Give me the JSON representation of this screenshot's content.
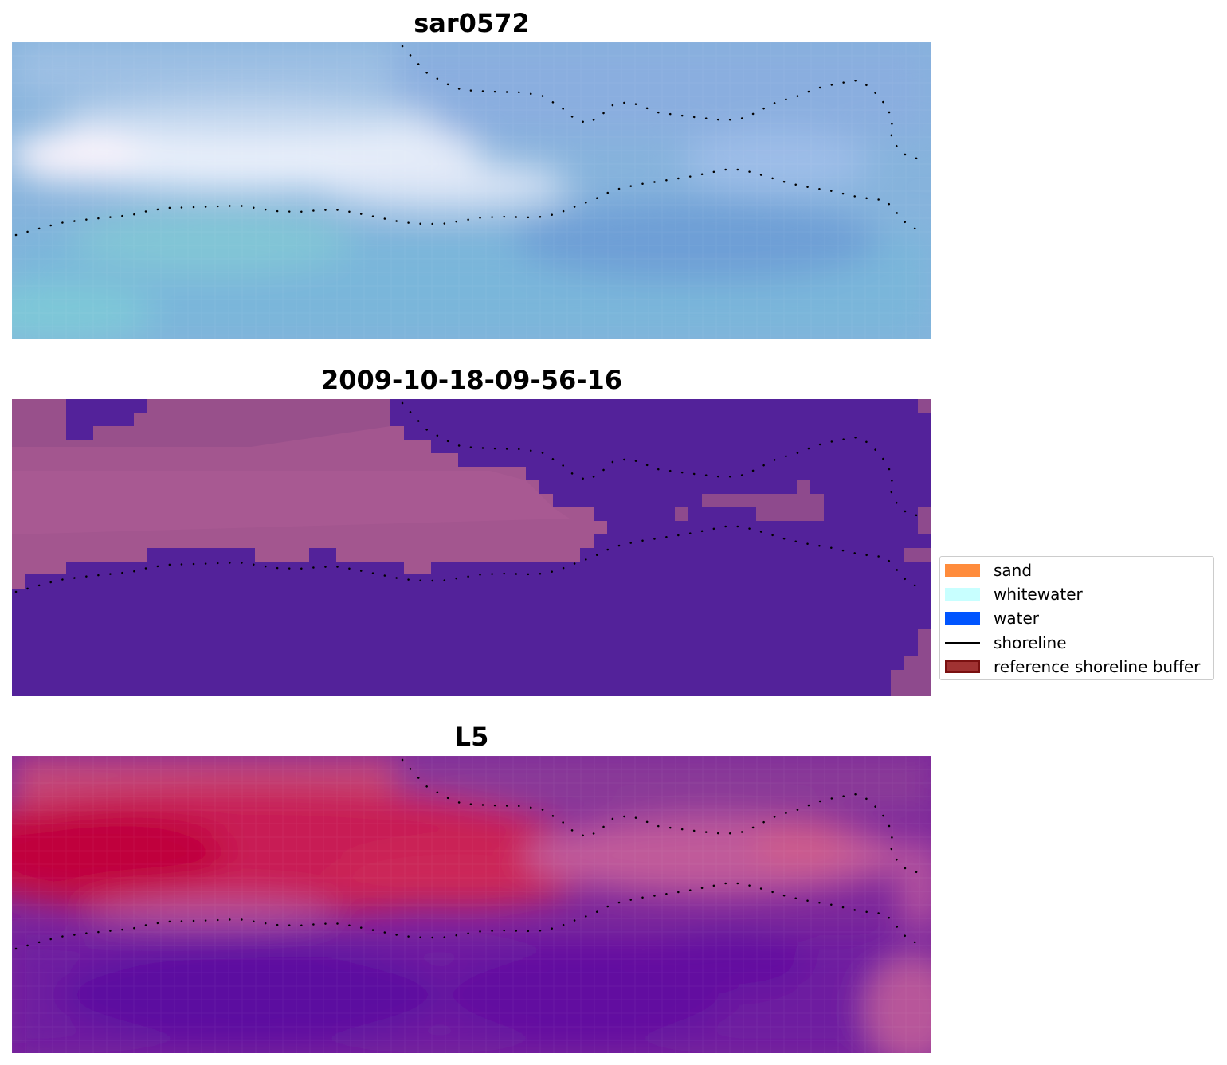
{
  "panels": [
    {
      "title": "sar0572",
      "kind": "rgb"
    },
    {
      "title": "2009-10-18-09-56-16",
      "kind": "classified"
    },
    {
      "title": "L5",
      "kind": "index"
    }
  ],
  "legend": {
    "items": [
      {
        "label": "sand",
        "color": "#ff8c3c",
        "type": "patch"
      },
      {
        "label": "whitewater",
        "color": "#c8ffff",
        "type": "patch"
      },
      {
        "label": "water",
        "color": "#0055ff",
        "type": "patch"
      },
      {
        "label": "shoreline",
        "color": "#000000",
        "type": "line"
      },
      {
        "label": "reference shoreline buffer",
        "color": "#a03232",
        "edge": "#7a1010",
        "type": "patch"
      }
    ]
  }
}
